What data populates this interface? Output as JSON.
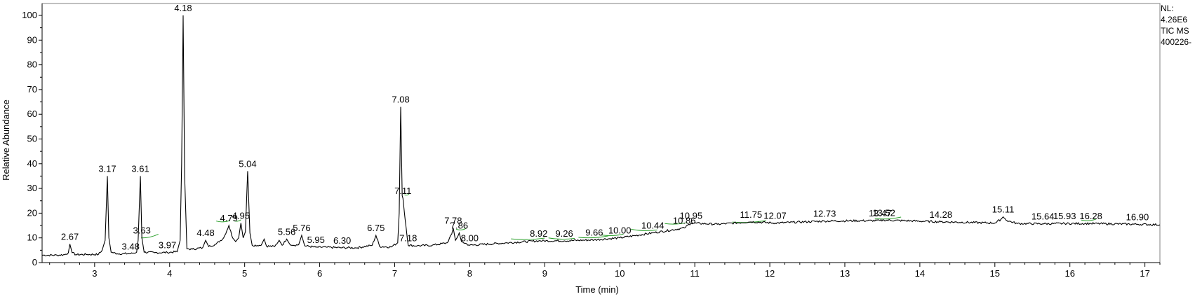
{
  "chart_data": {
    "type": "line",
    "title": "",
    "xlabel": "Time (min)",
    "ylabel": "Relative Abundance",
    "xlim": [
      2.3,
      17.2
    ],
    "ylim": [
      0,
      100
    ],
    "x_ticks": [
      "3",
      "4",
      "5",
      "6",
      "7",
      "8",
      "9",
      "10",
      "11",
      "12",
      "13",
      "14",
      "15",
      "16",
      "17"
    ],
    "y_ticks": [
      "0",
      "10",
      "20",
      "30",
      "40",
      "50",
      "60",
      "70",
      "80",
      "90",
      "100"
    ],
    "grid": false,
    "info": [
      "NL:",
      "4.26E6",
      "TIC  MS",
      "400226-"
    ],
    "line_color": "#000000",
    "baseline_marker_color": "#2ca02c",
    "trace": {
      "x": [
        2.3,
        2.5,
        2.6,
        2.65,
        2.67,
        2.7,
        2.75,
        2.9,
        3.05,
        3.1,
        3.14,
        3.17,
        3.19,
        3.22,
        3.3,
        3.48,
        3.56,
        3.58,
        3.61,
        3.63,
        3.66,
        3.8,
        3.97,
        4.1,
        4.14,
        4.16,
        4.18,
        4.2,
        4.23,
        4.3,
        4.44,
        4.48,
        4.52,
        4.62,
        4.72,
        4.79,
        4.84,
        4.88,
        4.92,
        4.95,
        4.98,
        5.01,
        5.04,
        5.07,
        5.1,
        5.22,
        5.26,
        5.29,
        5.4,
        5.46,
        5.5,
        5.56,
        5.6,
        5.66,
        5.72,
        5.76,
        5.8,
        5.95,
        6.1,
        6.3,
        6.5,
        6.7,
        6.75,
        6.8,
        6.95,
        7.04,
        7.06,
        7.08,
        7.1,
        7.11,
        7.13,
        7.18,
        7.3,
        7.5,
        7.7,
        7.76,
        7.78,
        7.81,
        7.84,
        7.86,
        7.89,
        8.0,
        8.5,
        8.92,
        9.26,
        9.66,
        10.0,
        10.44,
        10.86,
        10.95,
        11.3,
        11.75,
        12.07,
        12.73,
        13.47,
        13.52,
        14.28,
        15.0,
        15.08,
        15.11,
        15.16,
        15.3,
        15.64,
        15.93,
        16.28,
        16.9,
        17.2
      ],
      "y": [
        3.0,
        3.0,
        3.2,
        4.0,
        7.5,
        4.0,
        3.2,
        3.3,
        3.3,
        5.0,
        9.0,
        35.0,
        10.0,
        4.2,
        3.6,
        3.6,
        4.2,
        9.0,
        35.0,
        10.0,
        4.2,
        4.0,
        4.1,
        4.4,
        9.0,
        40.0,
        100.0,
        35.0,
        5.6,
        5.4,
        6.0,
        9.0,
        6.5,
        7.5,
        10.0,
        15.0,
        10.0,
        8.5,
        10.0,
        16.0,
        10.0,
        12.5,
        37.0,
        12.0,
        7.0,
        7.0,
        9.5,
        6.7,
        6.5,
        9.0,
        7.0,
        9.5,
        7.5,
        7.0,
        7.2,
        11.0,
        6.8,
        6.2,
        6.2,
        6.0,
        6.0,
        7.0,
        11.0,
        6.5,
        6.3,
        8.0,
        20.0,
        63.0,
        27.0,
        26.0,
        20.0,
        7.0,
        6.8,
        7.0,
        8.0,
        11.5,
        14.0,
        9.0,
        10.5,
        12.0,
        8.5,
        7.0,
        8.0,
        8.8,
        8.8,
        9.2,
        10.0,
        12.0,
        14.0,
        16.0,
        15.5,
        16.5,
        16.0,
        16.8,
        17.0,
        17.2,
        16.5,
        16.0,
        17.5,
        18.5,
        17.0,
        15.8,
        15.7,
        15.8,
        15.8,
        15.5,
        15.3
      ]
    },
    "peaks": [
      {
        "label": "2.67",
        "x": 2.67,
        "y": 7.5
      },
      {
        "label": "3.17",
        "x": 3.17,
        "y": 35.0
      },
      {
        "label": "3.48",
        "x": 3.48,
        "y": 3.6
      },
      {
        "label": "3.61",
        "x": 3.61,
        "y": 35.0
      },
      {
        "label": "3.63",
        "x": 3.63,
        "y": 10.0
      },
      {
        "label": "3.97",
        "x": 3.97,
        "y": 4.1
      },
      {
        "label": "4.18",
        "x": 4.18,
        "y": 100.0
      },
      {
        "label": "4.48",
        "x": 4.48,
        "y": 9.0
      },
      {
        "label": "4.79",
        "x": 4.79,
        "y": 15.0
      },
      {
        "label": "4.95",
        "x": 4.95,
        "y": 16.0
      },
      {
        "label": "5.04",
        "x": 5.04,
        "y": 37.0
      },
      {
        "label": "5.56",
        "x": 5.56,
        "y": 9.5
      },
      {
        "label": "5.76",
        "x": 5.76,
        "y": 11.0
      },
      {
        "label": "5.95",
        "x": 5.95,
        "y": 6.2
      },
      {
        "label": "6.30",
        "x": 6.3,
        "y": 6.0
      },
      {
        "label": "6.75",
        "x": 6.75,
        "y": 11.0
      },
      {
        "label": "7.08",
        "x": 7.08,
        "y": 63.0
      },
      {
        "label": "7.11",
        "x": 7.11,
        "y": 26.0
      },
      {
        "label": "7.18",
        "x": 7.18,
        "y": 7.0
      },
      {
        "label": "7.78",
        "x": 7.78,
        "y": 14.0
      },
      {
        "label": "7.86",
        "x": 7.86,
        "y": 12.0
      },
      {
        "label": "8.00",
        "x": 8.0,
        "y": 7.0
      },
      {
        "label": "8.92",
        "x": 8.92,
        "y": 8.8
      },
      {
        "label": "9.26",
        "x": 9.26,
        "y": 8.8
      },
      {
        "label": "9.66",
        "x": 9.66,
        "y": 9.2
      },
      {
        "label": "10.00",
        "x": 10.0,
        "y": 10.0
      },
      {
        "label": "10.44",
        "x": 10.44,
        "y": 12.0
      },
      {
        "label": "10.86",
        "x": 10.86,
        "y": 14.0
      },
      {
        "label": "10.95",
        "x": 10.95,
        "y": 16.0
      },
      {
        "label": "11.75",
        "x": 11.75,
        "y": 16.5
      },
      {
        "label": "12.07",
        "x": 12.07,
        "y": 16.0
      },
      {
        "label": "12.73",
        "x": 12.73,
        "y": 16.8
      },
      {
        "label": "13.47",
        "x": 13.47,
        "y": 17.0
      },
      {
        "label": "13.52",
        "x": 13.52,
        "y": 17.2
      },
      {
        "label": "14.28",
        "x": 14.28,
        "y": 16.5
      },
      {
        "label": "15.11",
        "x": 15.11,
        "y": 18.5
      },
      {
        "label": "15.64",
        "x": 15.64,
        "y": 15.7
      },
      {
        "label": "15.93",
        "x": 15.93,
        "y": 15.8
      },
      {
        "label": "16.28",
        "x": 16.28,
        "y": 15.8
      },
      {
        "label": "16.90",
        "x": 16.9,
        "y": 15.5
      }
    ]
  }
}
